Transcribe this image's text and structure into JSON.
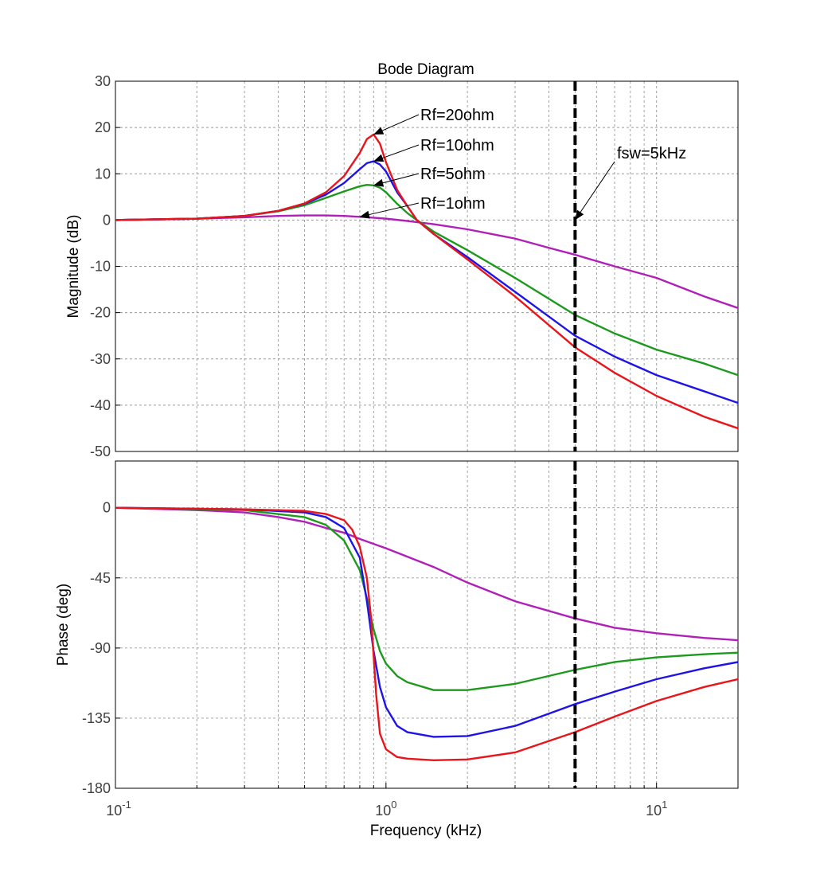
{
  "chart_data": {
    "type": "line",
    "title": "Bode Diagram",
    "xlabel": "Frequency  (kHz)",
    "xscale": "log",
    "xlim": [
      0.1,
      20
    ],
    "x_tick_labels": [
      {
        "base": "10",
        "exp": "-1",
        "value": 0.1
      },
      {
        "base": "10",
        "exp": "0",
        "value": 1
      },
      {
        "base": "10",
        "exp": "1",
        "value": 10
      }
    ],
    "grid": true,
    "colors": {
      "Rf=20ohm": "#e8151b",
      "Rf=10ohm": "#1f14e8",
      "Rf=5ohm": "#1d9a1d",
      "Rf=1ohm": "#b020b8"
    },
    "panels": [
      {
        "id": "magnitude",
        "ylabel": "Magnitude (dB)",
        "ylim": [
          -50,
          30
        ],
        "yticks": [
          "30",
          "20",
          "10",
          "0",
          "-10",
          "-20",
          "-30",
          "-40",
          "-50"
        ],
        "series": [
          {
            "name": "Rf=20ohm",
            "x": [
              0.1,
              0.2,
              0.3,
              0.4,
              0.5,
              0.6,
              0.7,
              0.8,
              0.85,
              0.9,
              0.95,
              1.0,
              1.1,
              1.2,
              1.3,
              1.5,
              2,
              3,
              5,
              7,
              10,
              15,
              20
            ],
            "y": [
              0,
              0.3,
              0.9,
              2.0,
              3.6,
              6.0,
              9.5,
              14.5,
              17.5,
              18.5,
              16.5,
              12.5,
              6.5,
              3,
              0,
              -3,
              -8.5,
              -16.5,
              -27.5,
              -33,
              -38,
              -42.5,
              -45
            ]
          },
          {
            "name": "Rf=10ohm",
            "x": [
              0.1,
              0.2,
              0.3,
              0.4,
              0.5,
              0.6,
              0.7,
              0.8,
              0.85,
              0.9,
              0.95,
              1.0,
              1.1,
              1.2,
              1.3,
              1.5,
              2,
              3,
              5,
              7,
              10,
              15,
              20
            ],
            "y": [
              0,
              0.3,
              0.9,
              2.0,
              3.5,
              5.5,
              8.0,
              11.0,
              12.3,
              12.7,
              12.0,
              10.5,
              6,
              3,
              0,
              -3,
              -8,
              -15.5,
              -25,
              -29.5,
              -33.5,
              -37,
              -39.5
            ]
          },
          {
            "name": "Rf=5ohm",
            "x": [
              0.1,
              0.2,
              0.3,
              0.4,
              0.5,
              0.6,
              0.7,
              0.8,
              0.85,
              0.9,
              0.95,
              1.0,
              1.1,
              1.2,
              1.3,
              1.5,
              2,
              3,
              5,
              7,
              10,
              15,
              20
            ],
            "y": [
              0,
              0.3,
              0.9,
              1.9,
              3.2,
              4.8,
              6.2,
              7.3,
              7.6,
              7.5,
              7.0,
              6.0,
              3.5,
              1.5,
              0,
              -2.5,
              -6.5,
              -12.5,
              -20.5,
              -24.5,
              -28,
              -31,
              -33.5
            ]
          },
          {
            "name": "Rf=1ohm",
            "x": [
              0.1,
              0.2,
              0.3,
              0.4,
              0.5,
              0.6,
              0.7,
              0.8,
              0.9,
              1.0,
              1.2,
              1.5,
              2,
              3,
              4,
              5,
              7,
              10,
              15,
              20
            ],
            "y": [
              0,
              0.3,
              0.6,
              0.9,
              1.0,
              1.0,
              0.9,
              0.7,
              0.5,
              0.3,
              -0.2,
              -0.9,
              -2,
              -4,
              -6,
              -7.5,
              -10,
              -12.5,
              -16.5,
              -19
            ]
          }
        ],
        "annotations": [
          {
            "text": "Rf=20ohm",
            "x": 0.9,
            "y": 18.5
          },
          {
            "text": "Rf=10ohm",
            "x": 0.9,
            "y": 12.7
          },
          {
            "text": "Rf=5ohm",
            "x": 0.9,
            "y": 7.5
          },
          {
            "text": "Rf=1ohm",
            "x": 0.8,
            "y": 0.7
          },
          {
            "text": "fsw=5kHz",
            "x": 5,
            "y": 0
          }
        ]
      },
      {
        "id": "phase",
        "ylabel": "Phase (deg)",
        "ylim": [
          -180,
          30
        ],
        "yticks": [
          "0",
          "-45",
          "-90",
          "-135",
          "-180"
        ],
        "series": [
          {
            "name": "Rf=20ohm",
            "x": [
              0.1,
              0.3,
              0.5,
              0.6,
              0.7,
              0.75,
              0.8,
              0.85,
              0.88,
              0.9,
              0.92,
              0.95,
              1.0,
              1.1,
              1.2,
              1.5,
              2,
              3,
              5,
              7,
              10,
              15,
              20
            ],
            "y": [
              0,
              -1,
              -2,
              -4,
              -8,
              -14,
              -25,
              -45,
              -70,
              -95,
              -120,
              -145,
              -155,
              -160,
              -161,
              -162,
              -161.5,
              -157,
              -144,
              -134,
              -124,
              -115,
              -110
            ]
          },
          {
            "name": "Rf=10ohm",
            "x": [
              0.1,
              0.3,
              0.5,
              0.6,
              0.7,
              0.8,
              0.85,
              0.9,
              0.95,
              1.0,
              1.1,
              1.2,
              1.5,
              2,
              3,
              5,
              7,
              10,
              15,
              20
            ],
            "y": [
              0,
              -1,
              -3,
              -6,
              -13,
              -32,
              -60,
              -92,
              -115,
              -128,
              -140,
              -144,
              -147,
              -146.5,
              -140,
              -126,
              -118,
              -110,
              -103,
              -99
            ]
          },
          {
            "name": "Rf=5ohm",
            "x": [
              0.1,
              0.3,
              0.5,
              0.6,
              0.7,
              0.8,
              0.85,
              0.9,
              0.95,
              1.0,
              1.1,
              1.2,
              1.5,
              2,
              3,
              5,
              7,
              10,
              15,
              20
            ],
            "y": [
              0,
              -1.5,
              -6,
              -11,
              -21,
              -40,
              -58,
              -78,
              -92,
              -100,
              -108,
              -112,
              -117,
              -117,
              -113,
              -104,
              -99,
              -96,
              -94,
              -93
            ]
          },
          {
            "name": "Rf=1ohm",
            "x": [
              0.1,
              0.2,
              0.3,
              0.4,
              0.5,
              0.6,
              0.7,
              0.8,
              1.0,
              1.5,
              2,
              3,
              5,
              7,
              10,
              15,
              20
            ],
            "y": [
              0,
              -1.5,
              -3,
              -6,
              -9,
              -13,
              -16,
              -20,
              -26,
              -38,
              -48,
              -60,
              -71,
              -77,
              -80.5,
              -83.5,
              -85
            ]
          }
        ]
      }
    ]
  }
}
